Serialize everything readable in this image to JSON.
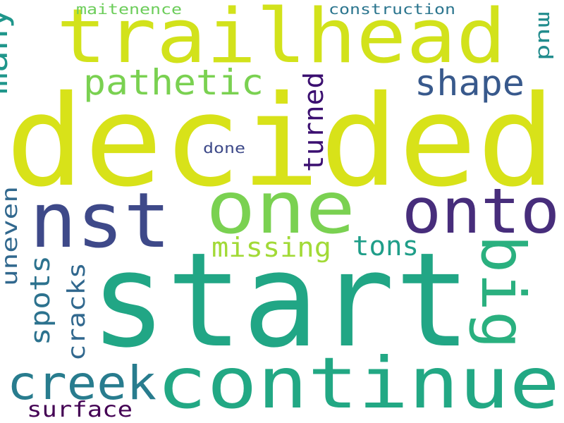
{
  "background": "#ffffff",
  "words": [
    {
      "text": "decided",
      "color": "#d8e219"
    },
    {
      "text": "start",
      "color": "#21a685"
    },
    {
      "text": "trailhead",
      "color": "#d2e21b"
    },
    {
      "text": "continue",
      "color": "#22a884"
    },
    {
      "text": "one",
      "color": "#7ad151"
    },
    {
      "text": "nst",
      "color": "#3e4989"
    },
    {
      "text": "onto",
      "color": "#472d7b"
    },
    {
      "text": "big",
      "color": "#2ab07f"
    },
    {
      "text": "creek",
      "color": "#287c8e"
    },
    {
      "text": "pathetic",
      "color": "#7ad151"
    },
    {
      "text": "shape",
      "color": "#38598c"
    },
    {
      "text": "many",
      "color": "#1f968b"
    },
    {
      "text": "missing",
      "color": "#a2da37"
    },
    {
      "text": "tons",
      "color": "#1f9e89"
    },
    {
      "text": "turned",
      "color": "#3b0f70"
    },
    {
      "text": "spots",
      "color": "#2c728e"
    },
    {
      "text": "cracks",
      "color": "#31688e"
    },
    {
      "text": "uneven",
      "color": "#31688e"
    },
    {
      "text": "surface",
      "color": "#440154"
    },
    {
      "text": "mud",
      "color": "#228c8d"
    },
    {
      "text": "done",
      "color": "#3e4a89"
    },
    {
      "text": "maitenence",
      "color": "#6ccd5a"
    },
    {
      "text": "construction",
      "color": "#2b758e"
    }
  ]
}
